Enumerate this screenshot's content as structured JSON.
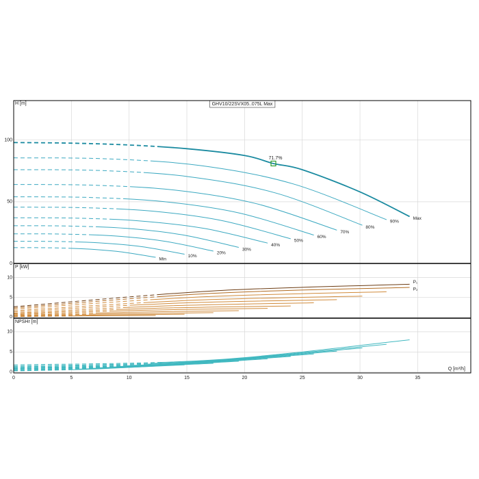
{
  "chart_data": [
    {
      "type": "line",
      "title": "GHV10/22SVX05..075L Max",
      "ylabel": "H [m]",
      "ylim": [
        0,
        132
      ],
      "yticks": [
        0,
        50,
        100
      ],
      "grid": true,
      "series": [
        {
          "name": "Max",
          "color": "#1a8aa0",
          "dashed_to": 12.3,
          "x": [
            0,
            5,
            10,
            15,
            20,
            22.5,
            25,
            30,
            34.3
          ],
          "values": [
            98,
            97.5,
            96,
            93,
            87.5,
            81,
            76,
            58,
            38
          ]
        },
        {
          "name": "90%",
          "color": "#3aa8c0",
          "dashed_to": 11.5,
          "x": [
            0,
            8.1,
            16.2,
            24.2,
            32.3
          ],
          "values": [
            85.6,
            84.8,
            79.3,
            64.5,
            35.5
          ]
        },
        {
          "name": "80%",
          "color": "#3aa8c0",
          "dashed_to": 10.8,
          "x": [
            0,
            7.6,
            15.1,
            22.7,
            30.2
          ],
          "values": [
            76,
            75.3,
            70.4,
            57.1,
            31
          ]
        },
        {
          "name": "70%",
          "color": "#3aa8c0",
          "dashed_to": 10,
          "x": [
            0,
            7,
            14,
            21,
            28
          ],
          "values": [
            64,
            63.4,
            59.4,
            48.5,
            27
          ]
        },
        {
          "name": "60%",
          "color": "#3aa8c0",
          "dashed_to": 9.3,
          "x": [
            0,
            6.5,
            13,
            19.5,
            26
          ],
          "values": [
            54,
            53.5,
            50.1,
            41,
            23
          ]
        },
        {
          "name": "50%",
          "color": "#3aa8c0",
          "dashed_to": 8.6,
          "x": [
            0,
            6,
            12,
            18,
            24
          ],
          "values": [
            45.6,
            45.2,
            42.4,
            34.8,
            20
          ]
        },
        {
          "name": "40%",
          "color": "#3aa8c0",
          "dashed_to": 7.9,
          "x": [
            0,
            5.5,
            11,
            16.5,
            22
          ],
          "values": [
            37,
            36.7,
            34.4,
            28.4,
            16.5
          ]
        },
        {
          "name": "30%",
          "color": "#3aa8c0",
          "dashed_to": 7,
          "x": [
            0,
            4.9,
            9.8,
            14.6,
            19.5
          ],
          "values": [
            30.6,
            30.3,
            28.4,
            23.2,
            13
          ]
        },
        {
          "name": "20%",
          "color": "#3aa8c0",
          "dashed_to": 6.2,
          "x": [
            0,
            4.3,
            8.7,
            13,
            17.3
          ],
          "values": [
            24,
            23.8,
            22.3,
            18.1,
            10
          ]
        },
        {
          "name": "10%",
          "color": "#3aa8c0",
          "dashed_to": 5.3,
          "x": [
            0,
            3.7,
            7.4,
            11.1,
            14.8
          ],
          "values": [
            18,
            17.8,
            16.7,
            13.6,
            7.5
          ]
        },
        {
          "name": "Min",
          "color": "#3aa8c0",
          "dashed_to": 4.4,
          "x": [
            0,
            3.1,
            6.2,
            9.2,
            12.3
          ],
          "values": [
            12.8,
            12.7,
            11.8,
            9.5,
            5
          ]
        }
      ],
      "annotations": [
        {
          "text": "71.7%",
          "x": 22.5,
          "y": 81,
          "color": "#2a9a2a"
        }
      ]
    },
    {
      "type": "line",
      "ylabel": "P [kW]",
      "ylim": [
        -0.3,
        13.4
      ],
      "yticks": [
        0,
        5,
        10
      ],
      "grid": true,
      "series": [
        {
          "name": "P₁",
          "color": "#6b3a10",
          "dashed_to": 12.3,
          "x": [
            0,
            17.2,
            34.3
          ],
          "values": [
            2.6,
            6.6,
            8.3
          ]
        },
        {
          "name": "P₂",
          "color": "#b06a20",
          "dashed_to": 12.3,
          "x": [
            0,
            17.2,
            34.3
          ],
          "values": [
            2.3,
            6,
            7.5
          ]
        },
        {
          "color": "#d08a3a",
          "dashed_to": 11.5,
          "x": [
            0,
            16.2,
            32.3
          ],
          "values": [
            2,
            5.1,
            6.4
          ]
        },
        {
          "color": "#d08a3a",
          "dashed_to": 10.8,
          "x": [
            0,
            15.1,
            30.2
          ],
          "values": [
            1.6,
            4.2,
            5.3
          ]
        },
        {
          "color": "#d08a3a",
          "dashed_to": 10,
          "x": [
            0,
            14,
            28
          ],
          "values": [
            1.3,
            3.5,
            4.4
          ]
        },
        {
          "color": "#d08a3a",
          "dashed_to": 9.3,
          "x": [
            0,
            13,
            26
          ],
          "values": [
            1,
            2.8,
            3.6
          ]
        },
        {
          "color": "#d08a3a",
          "dashed_to": 8.6,
          "x": [
            0,
            12,
            24
          ],
          "values": [
            0.8,
            2.2,
            2.8
          ]
        },
        {
          "color": "#d08a3a",
          "dashed_to": 7.9,
          "x": [
            0,
            11,
            22
          ],
          "values": [
            0.6,
            1.7,
            2.2
          ]
        },
        {
          "color": "#d08a3a",
          "dashed_to": 7,
          "x": [
            0,
            9.8,
            19.5
          ],
          "values": [
            0.4,
            1.2,
            1.6
          ]
        },
        {
          "color": "#d08a3a",
          "dashed_to": 6.2,
          "x": [
            0,
            8.7,
            17.3
          ],
          "values": [
            0.3,
            0.8,
            1.1
          ]
        },
        {
          "color": "#d08a3a",
          "dashed_to": 5.3,
          "x": [
            0,
            7.4,
            14.8
          ],
          "values": [
            0.2,
            0.5,
            0.7
          ]
        },
        {
          "color": "#d08a3a",
          "dashed_to": 4.4,
          "x": [
            0,
            6.2,
            12.3
          ],
          "values": [
            0.1,
            0.3,
            0.4
          ]
        }
      ]
    },
    {
      "type": "line",
      "ylabel": "NPSHr [m]",
      "xlabel": "Q [m³/h]",
      "ylim": [
        -0.2,
        13.2
      ],
      "yticks": [
        0,
        5,
        10
      ],
      "xlim": [
        0,
        39.6
      ],
      "xticks": [
        0,
        5,
        10,
        15,
        20,
        25,
        30,
        35
      ],
      "grid": true,
      "series": [
        {
          "color": "#40b8c0",
          "dashed_to": 12.3,
          "x": [
            0,
            17.2,
            34.3
          ],
          "values": [
            1.8,
            3,
            8
          ]
        },
        {
          "color": "#40b8c0",
          "dashed_to": 11.5,
          "x": [
            0,
            16.2,
            32.3
          ],
          "values": [
            1.5,
            2.7,
            6.9
          ]
        },
        {
          "color": "#40b8c0",
          "dashed_to": 10.8,
          "x": [
            0,
            15.1,
            30.2
          ],
          "values": [
            1.3,
            2.4,
            6
          ]
        },
        {
          "color": "#40b8c0",
          "dashed_to": 10,
          "x": [
            0,
            14,
            28
          ],
          "values": [
            1.1,
            2.1,
            5.2
          ]
        },
        {
          "color": "#40b8c0",
          "dashed_to": 9.3,
          "x": [
            0,
            13,
            26
          ],
          "values": [
            1,
            1.9,
            4.5
          ]
        },
        {
          "color": "#40b8c0",
          "dashed_to": 8.6,
          "x": [
            0,
            12,
            24
          ],
          "values": [
            0.9,
            1.7,
            3.9
          ]
        },
        {
          "color": "#40b8c0",
          "dashed_to": 7.9,
          "x": [
            0,
            11,
            22
          ],
          "values": [
            0.8,
            1.5,
            3.3
          ]
        },
        {
          "color": "#40b8c0",
          "dashed_to": 7,
          "x": [
            0,
            9.8,
            19.5
          ],
          "values": [
            0.6,
            1.3,
            2.7
          ]
        },
        {
          "color": "#40b8c0",
          "dashed_to": 6.2,
          "x": [
            0,
            8.7,
            17.3
          ],
          "values": [
            0.5,
            1.1,
            2.2
          ]
        },
        {
          "color": "#40b8c0",
          "dashed_to": 5.3,
          "x": [
            0,
            7.4,
            14.8
          ],
          "values": [
            0.4,
            0.9,
            1.8
          ]
        },
        {
          "color": "#40b8c0",
          "dashed_to": 4.4,
          "x": [
            0,
            6.2,
            12.3
          ],
          "values": [
            0.3,
            0.7,
            1.5
          ]
        }
      ]
    }
  ]
}
